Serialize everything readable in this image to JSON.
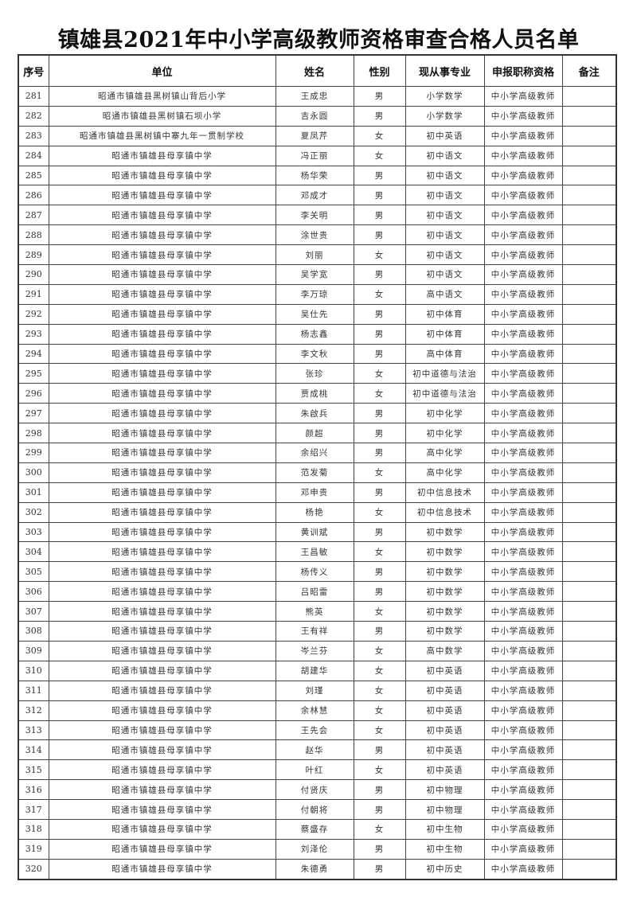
{
  "title": "镇雄县2021年中小学高级教师资格审查合格人员名单",
  "headers": [
    "序号",
    "单位",
    "姓名",
    "性别",
    "现从事专业",
    "申报职称资格",
    "备注"
  ],
  "rows": [
    {
      "no": "281",
      "unit": "昭通市镇雄县黑树镇山背后小学",
      "name": "王成忠",
      "gender": "男",
      "major": "小学数学",
      "title": "中小学高级教师",
      "note": ""
    },
    {
      "no": "282",
      "unit": "昭通市镇雄县黑树镇石坝小学",
      "name": "吉永圆",
      "gender": "男",
      "major": "小学数学",
      "title": "中小学高级教师",
      "note": ""
    },
    {
      "no": "283",
      "unit": "昭通市镇雄县黑树镇中寨九年一贯制学校",
      "name": "夏凤芹",
      "gender": "女",
      "major": "初中英语",
      "title": "中小学高级教师",
      "note": ""
    },
    {
      "no": "284",
      "unit": "昭通市镇雄县母享镇中学",
      "name": "冯正丽",
      "gender": "女",
      "major": "初中语文",
      "title": "中小学高级教师",
      "note": ""
    },
    {
      "no": "285",
      "unit": "昭通市镇雄县母享镇中学",
      "name": "杨华荣",
      "gender": "男",
      "major": "初中语文",
      "title": "中小学高级教师",
      "note": ""
    },
    {
      "no": "286",
      "unit": "昭通市镇雄县母享镇中学",
      "name": "邓成才",
      "gender": "男",
      "major": "初中语文",
      "title": "中小学高级教师",
      "note": ""
    },
    {
      "no": "287",
      "unit": "昭通市镇雄县母享镇中学",
      "name": "李关明",
      "gender": "男",
      "major": "初中语文",
      "title": "中小学高级教师",
      "note": ""
    },
    {
      "no": "288",
      "unit": "昭通市镇雄县母享镇中学",
      "name": "涂世贵",
      "gender": "男",
      "major": "初中语文",
      "title": "中小学高级教师",
      "note": ""
    },
    {
      "no": "289",
      "unit": "昭通市镇雄县母享镇中学",
      "name": "刘丽",
      "gender": "女",
      "major": "初中语文",
      "title": "中小学高级教师",
      "note": ""
    },
    {
      "no": "290",
      "unit": "昭通市镇雄县母享镇中学",
      "name": "吴学宽",
      "gender": "男",
      "major": "初中语文",
      "title": "中小学高级教师",
      "note": ""
    },
    {
      "no": "291",
      "unit": "昭通市镇雄县母享镇中学",
      "name": "李万琼",
      "gender": "女",
      "major": "高中语文",
      "title": "中小学高级教师",
      "note": ""
    },
    {
      "no": "292",
      "unit": "昭通市镇雄县母享镇中学",
      "name": "吴仕先",
      "gender": "男",
      "major": "初中体育",
      "title": "中小学高级教师",
      "note": ""
    },
    {
      "no": "293",
      "unit": "昭通市镇雄县母享镇中学",
      "name": "杨志鑫",
      "gender": "男",
      "major": "初中体育",
      "title": "中小学高级教师",
      "note": ""
    },
    {
      "no": "294",
      "unit": "昭通市镇雄县母享镇中学",
      "name": "李文秋",
      "gender": "男",
      "major": "高中体育",
      "title": "中小学高级教师",
      "note": ""
    },
    {
      "no": "295",
      "unit": "昭通市镇雄县母享镇中学",
      "name": "张珍",
      "gender": "女",
      "major": "初中道德与法治",
      "title": "中小学高级教师",
      "note": ""
    },
    {
      "no": "296",
      "unit": "昭通市镇雄县母享镇中学",
      "name": "贾成桃",
      "gender": "女",
      "major": "初中道德与法治",
      "title": "中小学高级教师",
      "note": ""
    },
    {
      "no": "297",
      "unit": "昭通市镇雄县母享镇中学",
      "name": "朱啟兵",
      "gender": "男",
      "major": "初中化学",
      "title": "中小学高级教师",
      "note": ""
    },
    {
      "no": "298",
      "unit": "昭通市镇雄县母享镇中学",
      "name": "颜超",
      "gender": "男",
      "major": "初中化学",
      "title": "中小学高级教师",
      "note": ""
    },
    {
      "no": "299",
      "unit": "昭通市镇雄县母享镇中学",
      "name": "余绍兴",
      "gender": "男",
      "major": "高中化学",
      "title": "中小学高级教师",
      "note": ""
    },
    {
      "no": "300",
      "unit": "昭通市镇雄县母享镇中学",
      "name": "范发菊",
      "gender": "女",
      "major": "高中化学",
      "title": "中小学高级教师",
      "note": ""
    },
    {
      "no": "301",
      "unit": "昭通市镇雄县母享镇中学",
      "name": "邓申贵",
      "gender": "男",
      "major": "初中信息技术",
      "title": "中小学高级教师",
      "note": ""
    },
    {
      "no": "302",
      "unit": "昭通市镇雄县母享镇中学",
      "name": "杨艳",
      "gender": "女",
      "major": "初中信息技术",
      "title": "中小学高级教师",
      "note": ""
    },
    {
      "no": "303",
      "unit": "昭通市镇雄县母享镇中学",
      "name": "黄训斌",
      "gender": "男",
      "major": "初中数学",
      "title": "中小学高级教师",
      "note": ""
    },
    {
      "no": "304",
      "unit": "昭通市镇雄县母享镇中学",
      "name": "王昌敏",
      "gender": "女",
      "major": "初中数学",
      "title": "中小学高级教师",
      "note": ""
    },
    {
      "no": "305",
      "unit": "昭通市镇雄县母享镇中学",
      "name": "杨传义",
      "gender": "男",
      "major": "初中数学",
      "title": "中小学高级教师",
      "note": ""
    },
    {
      "no": "306",
      "unit": "昭通市镇雄县母享镇中学",
      "name": "吕昭雷",
      "gender": "男",
      "major": "初中数学",
      "title": "中小学高级教师",
      "note": ""
    },
    {
      "no": "307",
      "unit": "昭通市镇雄县母享镇中学",
      "name": "熊英",
      "gender": "女",
      "major": "初中数学",
      "title": "中小学高级教师",
      "note": ""
    },
    {
      "no": "308",
      "unit": "昭通市镇雄县母享镇中学",
      "name": "王有祥",
      "gender": "男",
      "major": "初中数学",
      "title": "中小学高级教师",
      "note": ""
    },
    {
      "no": "309",
      "unit": "昭通市镇雄县母享镇中学",
      "name": "岑兰芬",
      "gender": "女",
      "major": "高中数学",
      "title": "中小学高级教师",
      "note": ""
    },
    {
      "no": "310",
      "unit": "昭通市镇雄县母享镇中学",
      "name": "胡建华",
      "gender": "女",
      "major": "初中英语",
      "title": "中小学高级教师",
      "note": ""
    },
    {
      "no": "311",
      "unit": "昭通市镇雄县母享镇中学",
      "name": "刘瑾",
      "gender": "女",
      "major": "初中英语",
      "title": "中小学高级教师",
      "note": ""
    },
    {
      "no": "312",
      "unit": "昭通市镇雄县母享镇中学",
      "name": "余林慧",
      "gender": "女",
      "major": "初中英语",
      "title": "中小学高级教师",
      "note": ""
    },
    {
      "no": "313",
      "unit": "昭通市镇雄县母享镇中学",
      "name": "王先会",
      "gender": "女",
      "major": "初中英语",
      "title": "中小学高级教师",
      "note": ""
    },
    {
      "no": "314",
      "unit": "昭通市镇雄县母享镇中学",
      "name": "赵华",
      "gender": "男",
      "major": "初中英语",
      "title": "中小学高级教师",
      "note": ""
    },
    {
      "no": "315",
      "unit": "昭通市镇雄县母享镇中学",
      "name": "叶红",
      "gender": "女",
      "major": "初中英语",
      "title": "中小学高级教师",
      "note": ""
    },
    {
      "no": "316",
      "unit": "昭通市镇雄县母享镇中学",
      "name": "付贤庆",
      "gender": "男",
      "major": "初中物理",
      "title": "中小学高级教师",
      "note": ""
    },
    {
      "no": "317",
      "unit": "昭通市镇雄县母享镇中学",
      "name": "付朝将",
      "gender": "男",
      "major": "初中物理",
      "title": "中小学高级教师",
      "note": ""
    },
    {
      "no": "318",
      "unit": "昭通市镇雄县母享镇中学",
      "name": "蔡盛存",
      "gender": "女",
      "major": "初中生物",
      "title": "中小学高级教师",
      "note": ""
    },
    {
      "no": "319",
      "unit": "昭通市镇雄县母享镇中学",
      "name": "刘泽伦",
      "gender": "男",
      "major": "初中生物",
      "title": "中小学高级教师",
      "note": ""
    },
    {
      "no": "320",
      "unit": "昭通市镇雄县母享镇中学",
      "name": "朱德勇",
      "gender": "男",
      "major": "初中历史",
      "title": "中小学高级教师",
      "note": ""
    }
  ]
}
